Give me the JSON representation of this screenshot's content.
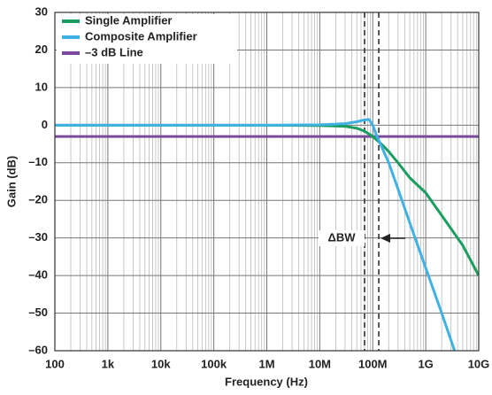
{
  "chart_data": {
    "type": "line",
    "x_label": "Frequency (Hz)",
    "y_label": "Gain (dB)",
    "log_x": true,
    "grid": true,
    "minor_grid": true,
    "legend": "upper left",
    "xlim": [
      100,
      10000000000
    ],
    "ylim": [
      -60,
      30
    ],
    "xticks": [
      100,
      {
        "value": 1000,
        "label": "1k"
      },
      {
        "value": 10000,
        "label": "10k"
      },
      {
        "value": 100000,
        "label": "100k"
      },
      {
        "value": 1000000,
        "label": "1M"
      },
      {
        "value": 10000000,
        "label": "10M"
      },
      {
        "value": 100000000,
        "label": "100M"
      },
      {
        "value": 1000000000,
        "label": "1G"
      },
      {
        "value": 10000000000,
        "label": "10G"
      }
    ],
    "yticks": [
      {
        "value": -60,
        "label": "–60"
      },
      {
        "value": -50,
        "label": "–50"
      },
      {
        "value": -40,
        "label": "–40"
      },
      {
        "value": -30,
        "label": "–30"
      },
      {
        "value": -20,
        "label": "–20"
      },
      {
        "value": -10,
        "label": "–10"
      },
      0,
      10,
      20,
      30
    ],
    "series": [
      {
        "name": "Single Amplifier",
        "color": "#1a9e5f",
        "x": [
          100,
          1000,
          10000,
          100000,
          1000000,
          10000000,
          30000000,
          50000000,
          70000000,
          100000000,
          150000000,
          200000000,
          300000000,
          500000000,
          1000000000,
          2000000000,
          5000000000,
          10000000000
        ],
        "values": [
          0,
          0,
          0,
          0,
          0,
          -0.1,
          -0.3,
          -0.8,
          -1.6,
          -3,
          -5.2,
          -7,
          -10,
          -14,
          -18,
          -24,
          -32,
          -40
        ]
      },
      {
        "name": "Composite Amplifier",
        "color": "#3fb1e3",
        "x": [
          100,
          1000,
          10000,
          100000,
          1000000,
          10000000,
          30000000,
          50000000,
          70000000,
          85000000,
          100000000,
          120000000,
          150000000,
          200000000,
          300000000,
          500000000,
          1000000000,
          2000000000,
          3500000000
        ],
        "values": [
          0,
          0,
          0,
          0,
          0,
          0.1,
          0.4,
          0.9,
          1.4,
          1.5,
          0,
          -3,
          -6,
          -10,
          -17,
          -26,
          -38,
          -50,
          -60
        ]
      },
      {
        "name": "–3 dB Line",
        "color": "#7b4a9a",
        "x": [
          100,
          10000000000
        ],
        "values": [
          -3,
          -3
        ]
      }
    ],
    "vlines": [
      70000000,
      130000000
    ],
    "annotation": "ΔBW"
  }
}
